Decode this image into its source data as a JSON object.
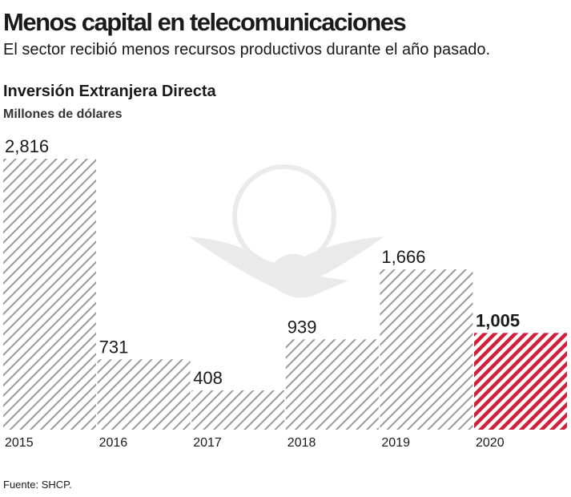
{
  "chart_data": {
    "type": "bar",
    "title": "Menos capital en telecomunicaciones",
    "subtitle": "El sector recibió menos recursos productivos durante el año pasado.",
    "chart_title": "Inversión Extranjera Directa",
    "y_label": "Millones de dólares",
    "categories": [
      "2015",
      "2016",
      "2017",
      "2018",
      "2019",
      "2020"
    ],
    "values": [
      2816,
      731,
      408,
      939,
      1666,
      1005
    ],
    "value_labels": [
      "2,816",
      "731",
      "408",
      "939",
      "1,666",
      "1,005"
    ],
    "colors": [
      "#9a9a9a",
      "#9a9a9a",
      "#9a9a9a",
      "#9a9a9a",
      "#9a9a9a",
      "#d2203a"
    ],
    "source": "Fuente: SHCP."
  }
}
